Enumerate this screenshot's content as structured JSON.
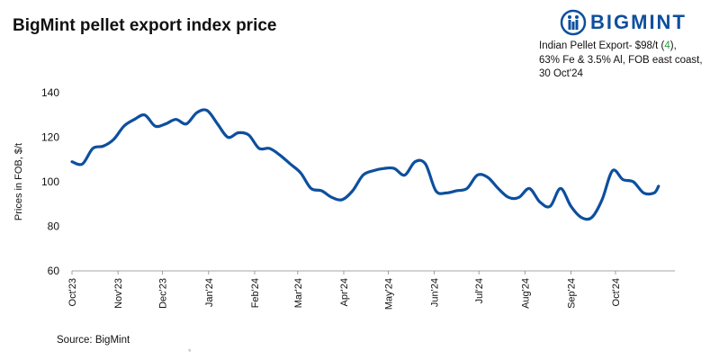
{
  "header": {
    "title": "BigMint pellet export index price",
    "logo_text": "BIGMINT"
  },
  "annotation": {
    "line1_prefix": "Indian Pellet Export- $98/t (",
    "line1_delta": "4",
    "line1_suffix": "),",
    "line2": "63% Fe & 3.5% Al, FOB east coast,",
    "line3": "30 Oct'24",
    "delta_color": "#2e9b3e"
  },
  "footer": {
    "source": "Source: BigMint",
    "mark": "*"
  },
  "chart_data": {
    "type": "line",
    "title": "BigMint pellet export index price",
    "xlabel": "",
    "ylabel": "Prices in FOB, $/t",
    "ylim": [
      60,
      140
    ],
    "yticks": [
      "60",
      "80",
      "100",
      "120",
      "140"
    ],
    "grid": false,
    "line_color": "#0d4f9e",
    "xticks": [
      "Oct'23",
      "Nov'23",
      "Dec'23",
      "Jan'24",
      "Feb'24",
      "Mar'24",
      "Apr'24",
      "May'24",
      "Jun'24",
      "Jul'24",
      "Aug'24",
      "Sep'24",
      "Oct'24"
    ],
    "x": [
      "2023-10-01",
      "2023-10-08",
      "2023-10-15",
      "2023-10-22",
      "2023-10-29",
      "2023-11-05",
      "2023-11-12",
      "2023-11-19",
      "2023-11-26",
      "2023-12-03",
      "2023-12-10",
      "2023-12-17",
      "2023-12-24",
      "2023-12-31",
      "2024-01-07",
      "2024-01-14",
      "2024-01-21",
      "2024-01-28",
      "2024-02-04",
      "2024-02-11",
      "2024-02-18",
      "2024-02-25",
      "2024-03-03",
      "2024-03-10",
      "2024-03-17",
      "2024-03-24",
      "2024-03-31",
      "2024-04-07",
      "2024-04-14",
      "2024-04-21",
      "2024-04-28",
      "2024-05-05",
      "2024-05-12",
      "2024-05-19",
      "2024-05-26",
      "2024-06-02",
      "2024-06-09",
      "2024-06-16",
      "2024-06-23",
      "2024-06-30",
      "2024-07-07",
      "2024-07-14",
      "2024-07-21",
      "2024-07-28",
      "2024-08-04",
      "2024-08-11",
      "2024-08-18",
      "2024-08-25",
      "2024-09-01",
      "2024-09-08",
      "2024-09-15",
      "2024-09-22",
      "2024-09-29",
      "2024-10-06",
      "2024-10-13",
      "2024-10-20",
      "2024-10-27",
      "2024-10-30"
    ],
    "series": [
      {
        "values": [
          109,
          108,
          115,
          116,
          119,
          125,
          128,
          130,
          125,
          126,
          128,
          126,
          131,
          132,
          126,
          120,
          122,
          121,
          115,
          115,
          112,
          108,
          104,
          97,
          96,
          93,
          92,
          96,
          103,
          105,
          106,
          106,
          103,
          109,
          108,
          96,
          95,
          96,
          97,
          103,
          102,
          97,
          93,
          93,
          97,
          91,
          89,
          97,
          89,
          84,
          84,
          92,
          105,
          101,
          100,
          95,
          95,
          98
        ]
      }
    ]
  }
}
